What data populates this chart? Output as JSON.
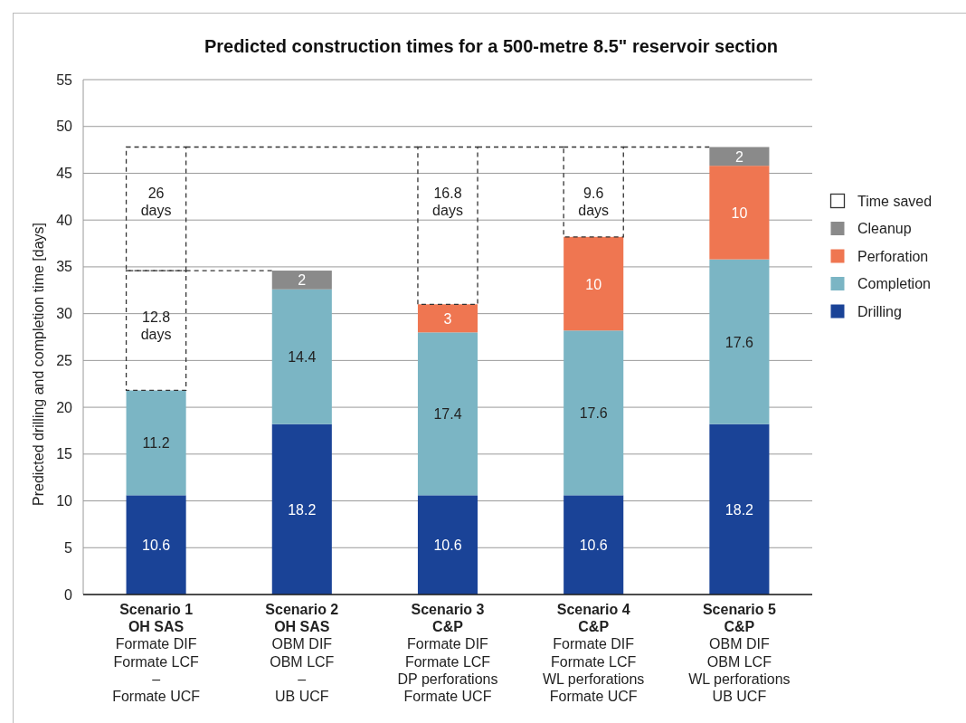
{
  "chart_data": {
    "type": "bar",
    "stacked": true,
    "title": "Predicted construction times for a 500-metre 8.5\" reservoir section",
    "ylabel": "Predicted drilling and completion time [days]",
    "categories": [
      "Scenario 1\nOH SAS\nFormate DIF\nFormate LCF\n–\nFormate UCF",
      "Scenario 2\nOH SAS\nOBM DIF\nOBM LCF\n–\nUB UCF",
      "Scenario 3\nC&P\nFormate DIF\nFormate LCF\nDP perforations\nFormate UCF",
      "Scenario 4\nC&P\nFormate DIF\nFormate LCF\nWL perforations\nFormate UCF",
      "Scenario 5\nC&P\nOBM DIF\nOBM LCF\nWL perforations\nUB UCF"
    ],
    "series": [
      {
        "name": "Drilling",
        "color": "#1a4397",
        "values": [
          10.6,
          18.2,
          10.6,
          10.6,
          18.2
        ],
        "value_labels": [
          "10.6",
          "18.2",
          "10.6",
          "10.6",
          "18.2"
        ]
      },
      {
        "name": "Completion",
        "color": "#7bb5c4",
        "values": [
          11.2,
          14.4,
          17.4,
          17.6,
          17.6
        ],
        "value_labels": [
          "11.2",
          "14.4",
          "17.4",
          "17.6",
          "17.6"
        ]
      },
      {
        "name": "Perforation",
        "color": "#ef7651",
        "values": [
          null,
          null,
          3,
          10,
          10
        ],
        "value_labels": [
          null,
          null,
          "3",
          "10",
          "10"
        ]
      },
      {
        "name": "Cleanup",
        "color": "#8a8a8a",
        "values": [
          null,
          2,
          null,
          null,
          2
        ],
        "value_labels": [
          null,
          "2",
          null,
          null,
          "2"
        ]
      },
      {
        "name": "Time saved",
        "color": "#333333",
        "line_style": "dashed",
        "values": [
          12.8,
          null,
          16.8,
          9.6,
          null
        ],
        "value_labels": [
          "12.8\ndays",
          null,
          "16.8\ndays",
          "9.6\ndays",
          null
        ]
      },
      {
        "color": "#333333",
        "line_style": "dashed",
        "values": [
          13.2,
          null,
          null,
          null,
          null
        ]
      }
    ],
    "annotations": [
      {
        "text": "26\ndays",
        "x": "Scenario 1\nOH SAS\nFormate DIF\nFormate LCF\n–\nFormate UCF",
        "y": 47.8
      }
    ],
    "ylim": [
      0,
      55
    ],
    "yticks": [
      0,
      5,
      10,
      15,
      20,
      25,
      30,
      35,
      40,
      45,
      50,
      55
    ],
    "grid": "y",
    "legend": "right"
  }
}
